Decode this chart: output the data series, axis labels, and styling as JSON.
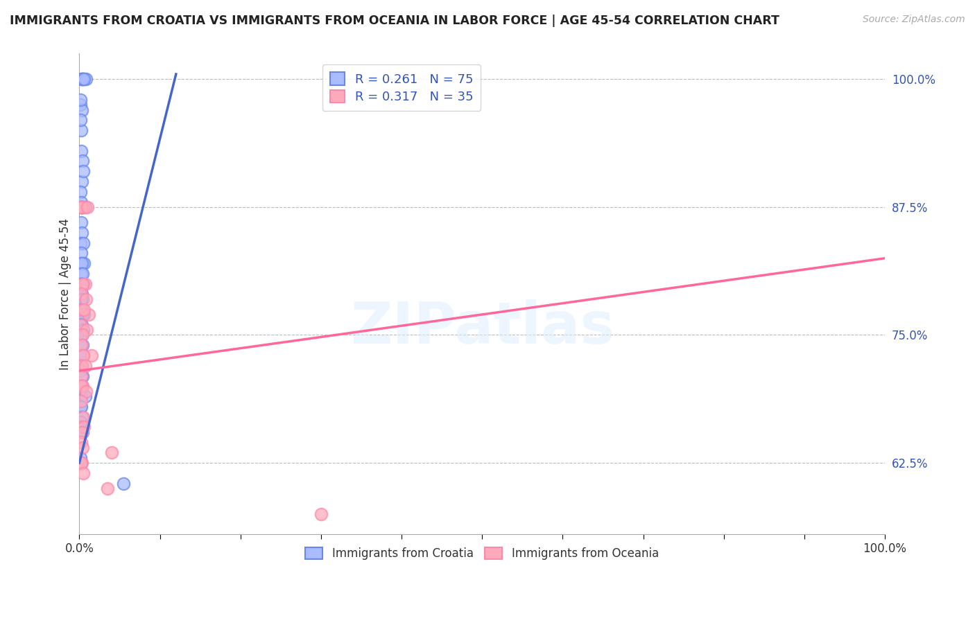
{
  "title": "IMMIGRANTS FROM CROATIA VS IMMIGRANTS FROM OCEANIA IN LABOR FORCE | AGE 45-54 CORRELATION CHART",
  "source": "Source: ZipAtlas.com",
  "ylabel": "In Labor Force | Age 45-54",
  "legend_label_blue": "Immigrants from Croatia",
  "legend_label_pink": "Immigrants from Oceania",
  "R_blue": 0.261,
  "N_blue": 75,
  "R_pink": 0.317,
  "N_pink": 35,
  "color_blue_face": "#AABBFF",
  "color_blue_edge": "#6688EE",
  "color_pink_face": "#FFAABB",
  "color_pink_edge": "#FF88AA",
  "color_blue_line": "#4466CC",
  "color_pink_line": "#FF6699",
  "color_tick_right": "#3355BB",
  "scatter_blue_x": [
    0.003,
    0.005,
    0.002,
    0.001,
    0.008,
    0.004,
    0.003,
    0.001,
    0.002,
    0.006,
    0.002,
    0.001,
    0.004,
    0.003,
    0.005,
    0.001,
    0.002,
    0.007,
    0.003,
    0.002,
    0.001,
    0.004,
    0.002,
    0.003,
    0.001,
    0.005,
    0.002,
    0.001,
    0.006,
    0.003,
    0.002,
    0.004,
    0.001,
    0.003,
    0.002,
    0.005,
    0.001,
    0.003,
    0.004,
    0.002,
    0.001,
    0.003,
    0.006,
    0.002,
    0.001,
    0.004,
    0.002,
    0.003,
    0.001,
    0.005,
    0.002,
    0.001,
    0.003,
    0.004,
    0.002,
    0.001,
    0.005,
    0.002,
    0.003,
    0.001,
    0.004,
    0.002,
    0.001,
    0.003,
    0.002,
    0.007,
    0.001,
    0.002,
    0.003,
    0.001,
    0.002,
    0.004,
    0.001,
    0.002,
    0.055
  ],
  "scatter_blue_y": [
    1.0,
    1.0,
    1.0,
    0.975,
    1.0,
    1.0,
    0.97,
    0.98,
    0.95,
    1.0,
    0.93,
    0.96,
    0.92,
    0.9,
    0.91,
    0.89,
    0.88,
    0.875,
    0.875,
    0.875,
    0.875,
    0.875,
    0.86,
    0.85,
    0.84,
    0.84,
    0.83,
    0.82,
    0.82,
    0.82,
    0.81,
    0.81,
    0.8,
    0.8,
    0.8,
    0.8,
    0.79,
    0.79,
    0.785,
    0.785,
    0.775,
    0.775,
    0.77,
    0.77,
    0.77,
    0.77,
    0.76,
    0.76,
    0.76,
    0.755,
    0.75,
    0.75,
    0.75,
    0.74,
    0.74,
    0.73,
    0.73,
    0.72,
    0.72,
    0.715,
    0.71,
    0.7,
    0.7,
    0.7,
    0.69,
    0.69,
    0.68,
    0.68,
    0.67,
    0.665,
    0.66,
    0.655,
    0.63,
    0.625,
    0.605
  ],
  "scatter_pink_x": [
    0.003,
    0.005,
    0.002,
    0.01,
    0.007,
    0.004,
    0.002,
    0.008,
    0.003,
    0.012,
    0.006,
    0.002,
    0.009,
    0.004,
    0.003,
    0.015,
    0.005,
    0.003,
    0.007,
    0.002,
    0.004,
    0.003,
    0.008,
    0.002,
    0.005,
    0.006,
    0.003,
    0.002,
    0.004,
    0.04,
    0.003,
    0.002,
    0.005,
    0.035,
    0.3
  ],
  "scatter_pink_y": [
    0.875,
    0.875,
    0.875,
    0.875,
    0.8,
    0.8,
    0.79,
    0.785,
    0.775,
    0.77,
    0.775,
    0.76,
    0.755,
    0.75,
    0.74,
    0.73,
    0.73,
    0.72,
    0.72,
    0.71,
    0.7,
    0.7,
    0.695,
    0.685,
    0.67,
    0.66,
    0.655,
    0.645,
    0.64,
    0.635,
    0.625,
    0.625,
    0.615,
    0.6,
    0.575
  ],
  "blue_line_x": [
    0.0,
    0.12
  ],
  "blue_line_y": [
    0.625,
    1.005
  ],
  "pink_line_x": [
    0.0,
    1.0
  ],
  "pink_line_y": [
    0.715,
    0.825
  ],
  "xlim": [
    0.0,
    1.0
  ],
  "ylim": [
    0.555,
    1.025
  ],
  "yticks": [
    0.625,
    0.75,
    0.875,
    1.0
  ],
  "ytick_labels": [
    "62.5%",
    "75.0%",
    "87.5%",
    "100.0%"
  ],
  "xtick_positions": [
    0.0,
    0.1,
    0.2,
    0.3,
    0.4,
    0.5,
    0.6,
    0.7,
    0.8,
    0.9,
    1.0
  ],
  "xtick_labels_show": [
    "0.0%",
    "",
    "",
    "",
    "",
    "",
    "",
    "",
    "",
    "",
    "100.0%"
  ],
  "watermark": "ZIPatlas",
  "background_color": "#FFFFFF",
  "grid_color": "#BBBBBB"
}
